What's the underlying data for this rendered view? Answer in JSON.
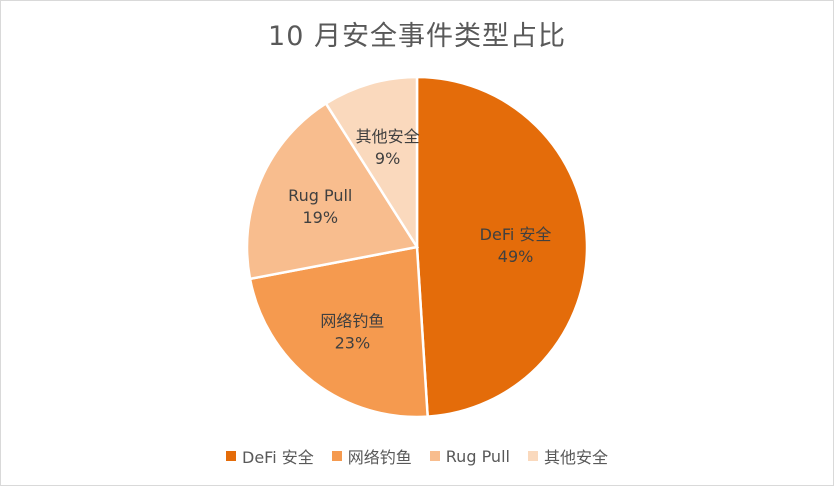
{
  "chart_data": {
    "type": "pie",
    "title": "10 月安全事件类型占比",
    "categories": [
      "DeFi 安全",
      "网络钓鱼",
      "Rug Pull",
      "其他安全"
    ],
    "values": [
      49,
      23,
      19,
      9
    ],
    "value_labels": [
      "49%",
      "23%",
      "19%",
      "9%"
    ],
    "colors": [
      "#E46C0A",
      "#F59A4F",
      "#F8BD8E",
      "#FAD9BD"
    ],
    "start_angle": "top",
    "direction": "clockwise",
    "legend_position": "bottom"
  }
}
